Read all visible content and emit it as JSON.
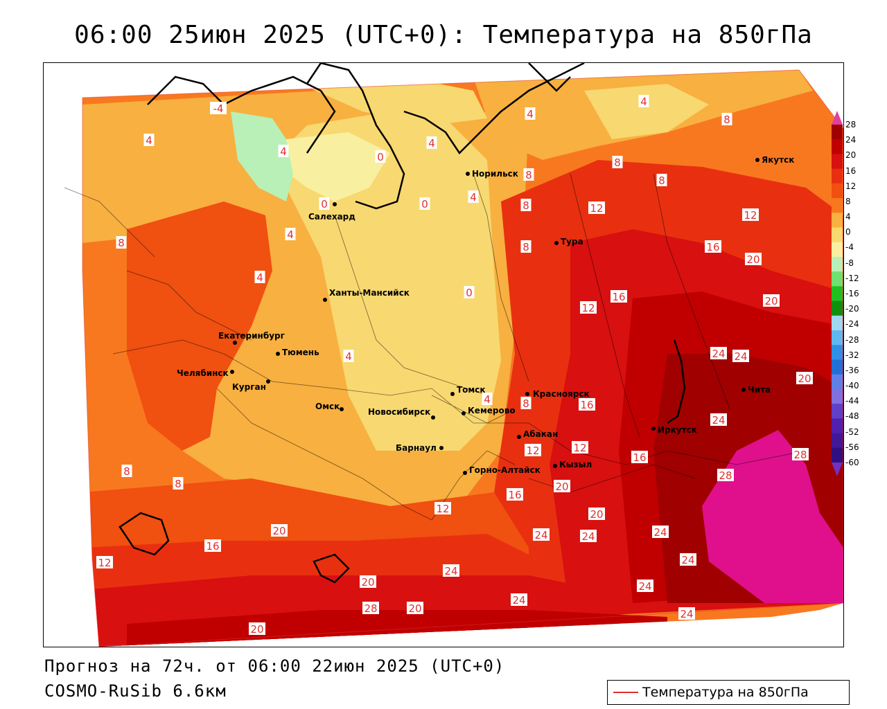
{
  "title": "06:00 25июн 2025 (UTC+0): Температура на 850гПа",
  "footer": {
    "forecast": "Прогноз на 72ч. от 06:00 22июн 2025 (UTC+0)",
    "model": "COSMO-RuSib 6.6км"
  },
  "legend": {
    "label": "Температура на 850гПа",
    "line_color": "#e03030"
  },
  "colorbar": {
    "ticks": [
      "28",
      "24",
      "20",
      "16",
      "12",
      "8",
      "4",
      "0",
      "-4",
      "-8",
      "-12",
      "-16",
      "-20",
      "-24",
      "-28",
      "-32",
      "-36",
      "-40",
      "-44",
      "-48",
      "-52",
      "-56",
      "-60"
    ],
    "colors": [
      "#a00000",
      "#c00000",
      "#d81010",
      "#e83010",
      "#f05010",
      "#f87820",
      "#f8b040",
      "#f8d870",
      "#f8f0a0",
      "#b8f0b8",
      "#70e070",
      "#20c020",
      "#109010",
      "#a0d8f0",
      "#60b8f0",
      "#3090e8",
      "#2070d8",
      "#6080e8",
      "#8070e0",
      "#6040c8",
      "#5020b0",
      "#401898",
      "#301080"
    ],
    "top_color": "#e040a0",
    "bottom_color": "#7030c0"
  },
  "cities": [
    {
      "name": "Норильск"
    },
    {
      "name": "Якутск"
    },
    {
      "name": "Салехард"
    },
    {
      "name": "Тура"
    },
    {
      "name": "Ханты-Мансийск"
    },
    {
      "name": "Екатеринбург"
    },
    {
      "name": "Тюмень"
    },
    {
      "name": "Челябинск"
    },
    {
      "name": "Курган"
    },
    {
      "name": "Омск"
    },
    {
      "name": "Новосибирск"
    },
    {
      "name": "Томск"
    },
    {
      "name": "Кемерово"
    },
    {
      "name": "Красноярск"
    },
    {
      "name": "Абакан"
    },
    {
      "name": "Барнаул"
    },
    {
      "name": "Горно-Алтайск"
    },
    {
      "name": "Кызыл"
    },
    {
      "name": "Иркутск"
    },
    {
      "name": "Чита"
    }
  ],
  "isotherm_labels": [
    "-4",
    "4",
    "4",
    "0",
    "0",
    "0",
    "4",
    "4",
    "8",
    "4",
    "8",
    "4",
    "8",
    "8",
    "12",
    "12",
    "8",
    "8",
    "4",
    "4",
    "0",
    "4",
    "4",
    "8",
    "12",
    "16",
    "16",
    "20",
    "20",
    "12",
    "16",
    "24",
    "24",
    "20",
    "8",
    "16",
    "24",
    "8",
    "8",
    "12",
    "12",
    "20",
    "16",
    "20",
    "24",
    "24",
    "24",
    "28",
    "28",
    "12",
    "16",
    "20",
    "20",
    "24",
    "24",
    "28",
    "24",
    "20",
    "20",
    "24",
    "24"
  ]
}
